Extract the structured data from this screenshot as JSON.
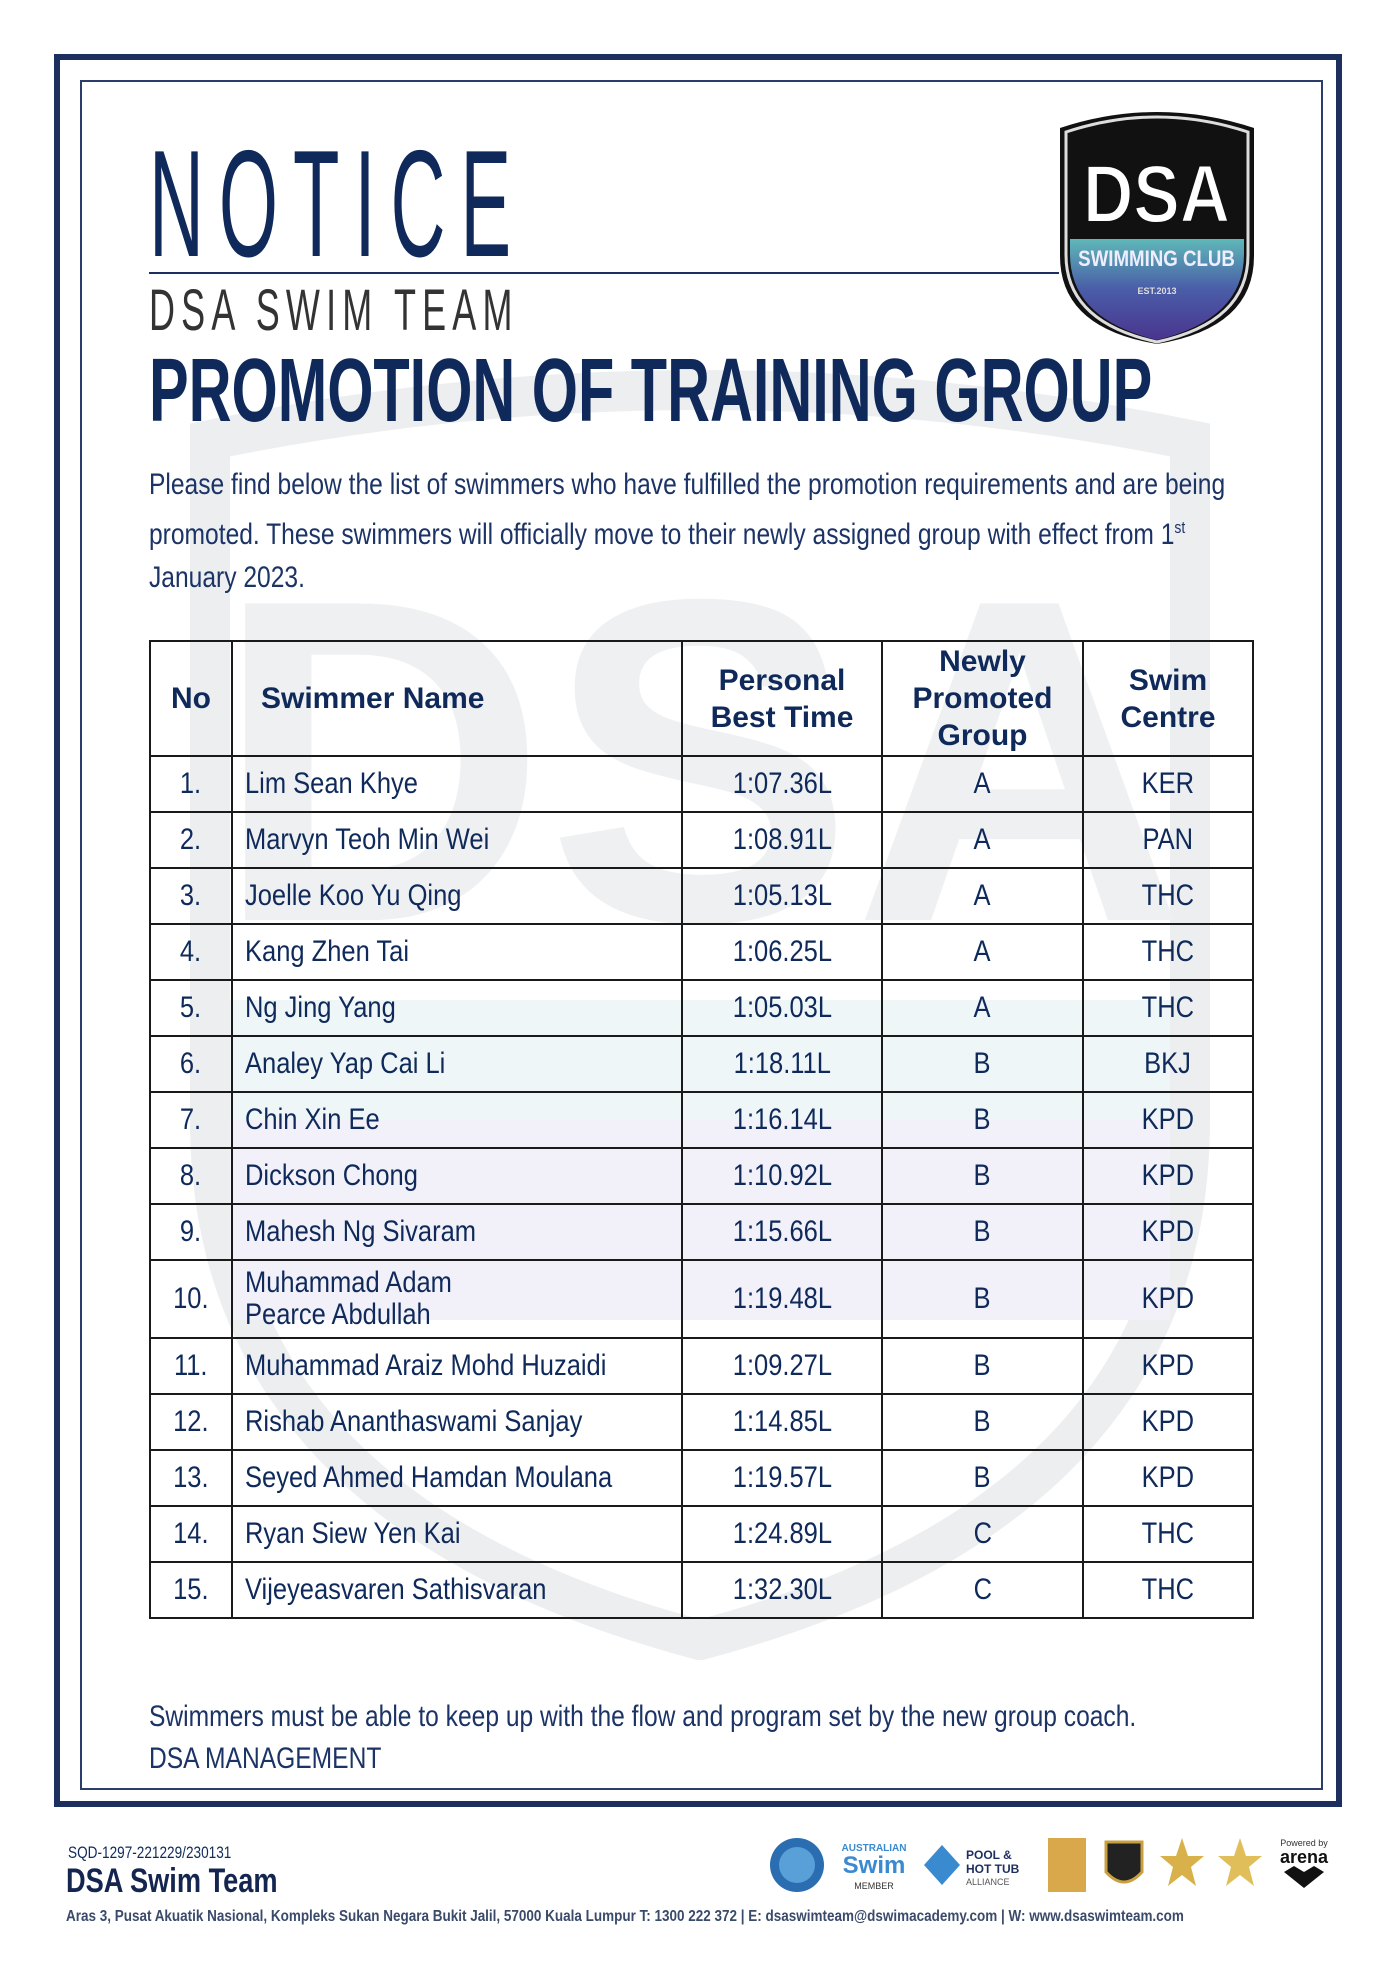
{
  "header": {
    "notice": "NOTICE",
    "team": "DSA SWIM TEAM",
    "title": "PROMOTION OF TRAINING GROUP",
    "logo": {
      "main": "DSA",
      "sub": "SWIMMING CLUB",
      "est": "EST.2013",
      "colors": {
        "black": "#111111",
        "teal": "#5fb8b8",
        "purple": "#4a2d8a"
      }
    }
  },
  "intro": {
    "text_before": "Please find below the list of swimmers who have fulfilled the promotion requirements and are being promoted. These swimmers will officially move to their newly assigned group with effect from 1",
    "sup": "st",
    "text_after": " January 2023."
  },
  "table": {
    "headers": [
      "No",
      "Swimmer Name",
      "Personal\nBest Time",
      "Newly\nPromoted\nGroup",
      "Swim\nCentre"
    ],
    "rows": [
      [
        "1.",
        "Lim Sean Khye",
        "1:07.36L",
        "A",
        "KER"
      ],
      [
        "2.",
        "Marvyn Teoh Min Wei",
        "1:08.91L",
        "A",
        "PAN"
      ],
      [
        "3.",
        "Joelle Koo Yu Qing",
        "1:05.13L",
        "A",
        "THC"
      ],
      [
        "4.",
        "Kang Zhen Tai",
        "1:06.25L",
        "A",
        "THC"
      ],
      [
        "5.",
        "Ng Jing Yang",
        "1:05.03L",
        "A",
        "THC"
      ],
      [
        "6.",
        "Analey Yap Cai Li",
        "1:18.11L",
        "B",
        "BKJ"
      ],
      [
        "7.",
        "Chin Xin Ee",
        "1:16.14L",
        "B",
        "KPD"
      ],
      [
        "8.",
        "Dickson Chong",
        "1:10.92L",
        "B",
        "KPD"
      ],
      [
        "9.",
        "Mahesh Ng Sivaram",
        "1:15.66L",
        "B",
        "KPD"
      ],
      [
        "10.",
        "Muhammad Adam Pearce Abdullah",
        "1:19.48L",
        "B",
        "KPD"
      ],
      [
        "11.",
        "Muhammad Araiz Mohd Huzaidi",
        "1:09.27L",
        "B",
        "KPD"
      ],
      [
        "12.",
        "Rishab Ananthaswami Sanjay",
        "1:14.85L",
        "B",
        "KPD"
      ],
      [
        "13.",
        "Seyed Ahmed Hamdan Moulana",
        "1:19.57L",
        "B",
        "KPD"
      ],
      [
        "14.",
        "Ryan Siew Yen Kai",
        "1:24.89L",
        "C",
        "THC"
      ],
      [
        "15.",
        "Vijeyeasvaren Sathisvaran",
        "1:32.30L",
        "C",
        "THC"
      ]
    ]
  },
  "closing": {
    "line1": "Swimmers must be able to keep up with the flow and program set by the new group coach.",
    "line2": "DSA MANAGEMENT"
  },
  "footer": {
    "ref": "SQD-1297-221229/230131",
    "brand": "DSA Swim Team",
    "address": "Aras 3, Pusat Akuatik Nasional, Kompleks Sukan Negara Bukit Jalil, 57000 Kuala Lumpur   T: 1300 222 372  |  E: dsaswimteam@dswimacademy.com  |  W: www.dsaswimteam.com",
    "powered_by": "Powered by",
    "arena": "arena",
    "logos": [
      "swim-school-badge",
      "australian-swim-member-logo",
      "pool-hot-tub-alliance-logo",
      "award-badge-gold",
      "award-shield-badge",
      "award-star-badge",
      "award-star-badge-2",
      "arena-logo"
    ],
    "logo_texts": {
      "australian_swim": "AUSTRALIAN SWIM MEMBER",
      "pool": "POOL & HOT TUB ALLIANCE"
    }
  },
  "colors": {
    "navy": "#0f2a5a",
    "border": "#1c2f5e"
  }
}
